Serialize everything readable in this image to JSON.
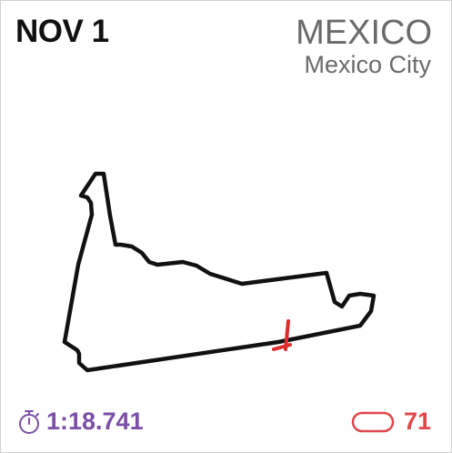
{
  "race": {
    "date": "NOV 1",
    "country": "MEXICO",
    "city": "Mexico City"
  },
  "track": {
    "name": "mexico-city-circuit-outline",
    "line_color": "#111111",
    "start_finish_color": "#e02b2b"
  },
  "stats": {
    "lap_record": "1:18.741",
    "lap_record_icon": "stopwatch-icon",
    "lap_record_color": "#7b4fa6",
    "laps": "71",
    "laps_icon": "lap-loop-icon",
    "laps_color": "#e0474c"
  }
}
